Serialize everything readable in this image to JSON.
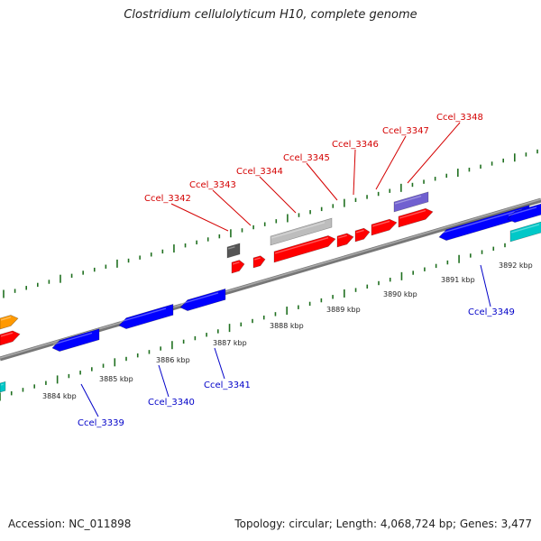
{
  "title": "Clostridium cellulolyticum H10, complete genome",
  "footer": {
    "accession": "Accession: NC_011898",
    "summary": "Topology: circular; Length: 4,068,724 bp; Genes: 3,477"
  },
  "colors": {
    "backbone": "#808080",
    "ticks": "#207020",
    "forward_label": "#d40000",
    "reverse_label": "#0000c8",
    "red_gene": "#ff0000",
    "blue_gene": "#0000ff",
    "grey_gene": "#bdbdbd",
    "dark_gene": "#555555",
    "purple_gene": "#7060d0",
    "cyan_gene": "#00c8c8",
    "orange_gene": "#ff9900"
  },
  "scale_labels": [
    "3884 kbp",
    "3885 kbp",
    "3886 kbp",
    "3887 kbp",
    "3888 kbp",
    "3889 kbp",
    "3890 kbp",
    "3891 kbp",
    "3892 kbp"
  ],
  "forward_genes": [
    "Ccel_3342",
    "Ccel_3343",
    "Ccel_3344",
    "Ccel_3345",
    "Ccel_3346",
    "Ccel_3347",
    "Ccel_3348"
  ],
  "reverse_genes": [
    "Ccel_3339",
    "Ccel_3340",
    "Ccel_3341",
    "Ccel_3349"
  ]
}
